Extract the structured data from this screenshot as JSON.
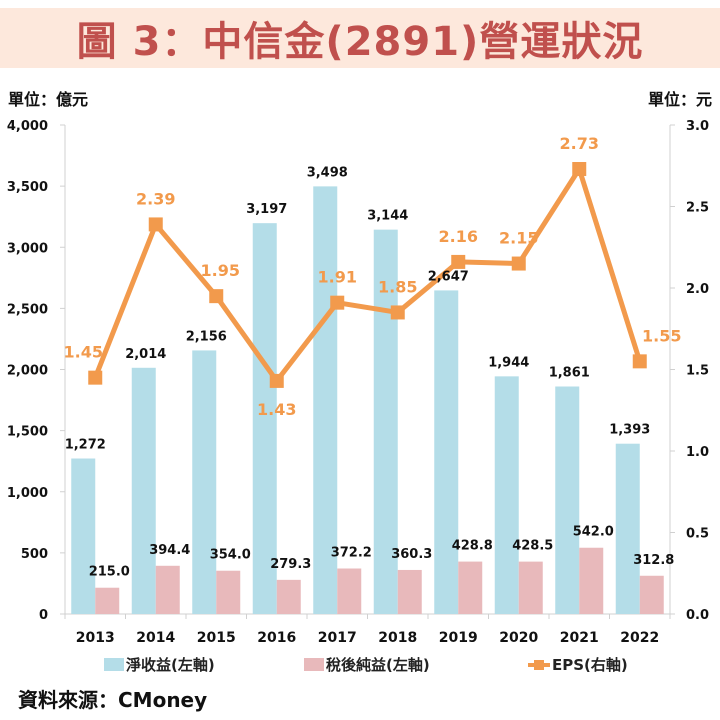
{
  "title": "圖 3：中信金(2891)營運狀況",
  "unit_left": "單位：億元",
  "unit_right": "單位：元",
  "source": "資料來源：CMoney",
  "colors": {
    "net_revenue": "#b4dde8",
    "net_income": "#e8b9bb",
    "eps": "#f29a4c",
    "title": "#c0504d",
    "banner": "#fde8dc"
  },
  "chart_data": {
    "type": "bar",
    "title": "圖 3：中信金(2891)營運狀況",
    "categories": [
      "2013",
      "2014",
      "2015",
      "2016",
      "2017",
      "2018",
      "2019",
      "2020",
      "2021",
      "2022"
    ],
    "series": [
      {
        "name": "淨收益(左軸)",
        "type": "bar",
        "axis": "left",
        "values": [
          1272,
          2014,
          2156,
          3197,
          3498,
          3144,
          2647,
          1944,
          1861,
          1393
        ],
        "labels": [
          "1,272",
          "2,014",
          "2,156",
          "3,197",
          "3,498",
          "3,144",
          "2,647",
          "1,944",
          "1,861",
          "1,393"
        ]
      },
      {
        "name": "稅後純益(左軸)",
        "type": "bar",
        "axis": "left",
        "values": [
          215.0,
          394.4,
          354.0,
          279.3,
          372.2,
          360.3,
          428.8,
          428.5,
          542.0,
          312.8
        ],
        "labels": [
          "215.0",
          "394.4",
          "354.0",
          "279.3",
          "372.2",
          "360.3",
          "428.8",
          "428.5",
          "542.0",
          "312.8"
        ]
      },
      {
        "name": "EPS(右軸)",
        "type": "line",
        "axis": "right",
        "values": [
          1.45,
          2.39,
          1.95,
          1.43,
          1.91,
          1.85,
          2.16,
          2.15,
          2.73,
          1.55
        ],
        "labels": [
          "1.45",
          "2.39",
          "1.95",
          "1.43",
          "1.91",
          "1.85",
          "2.16",
          "2.15",
          "2.73",
          "1.55"
        ]
      }
    ],
    "y_left": {
      "label": "單位：億元",
      "range": [
        0,
        4000
      ],
      "ticks": [
        "0",
        "500",
        "1,000",
        "1,500",
        "2,000",
        "2,500",
        "3,000",
        "3,500",
        "4,000"
      ]
    },
    "y_right": {
      "label": "單位：元",
      "range": [
        0,
        3.0
      ],
      "ticks": [
        "0.0",
        "0.5",
        "1.0",
        "1.5",
        "2.0",
        "2.5",
        "3.0"
      ]
    },
    "grid": false,
    "legend": "bottom"
  },
  "legend": [
    {
      "label": "淨收益(左軸)",
      "kind": "bar-swatch"
    },
    {
      "label": "稅後純益(左軸)",
      "kind": "bar-swatch"
    },
    {
      "label": "EPS(右軸)",
      "kind": "line-marker"
    }
  ]
}
